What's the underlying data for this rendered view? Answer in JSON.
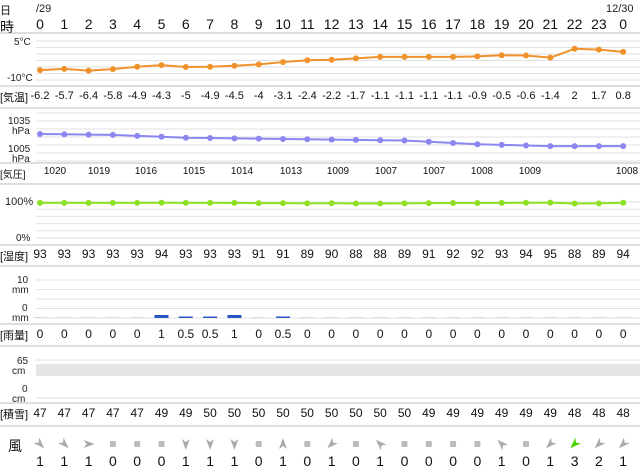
{
  "header": {
    "date_label": "日",
    "hour_label": "時",
    "date_start": "/29",
    "date_end": "12/30",
    "hours": [
      "0",
      "1",
      "2",
      "3",
      "4",
      "5",
      "6",
      "7",
      "8",
      "9",
      "10",
      "11",
      "12",
      "13",
      "14",
      "15",
      "16",
      "17",
      "18",
      "19",
      "20",
      "21",
      "22",
      "23",
      "0"
    ]
  },
  "temperature": {
    "row_label": "[気温]",
    "axis_top": "5°C",
    "axis_bottom": "-10°C",
    "values": [
      "-6.2",
      "-5.7",
      "-6.4",
      "-5.8",
      "-4.9",
      "-4.3",
      "-5",
      "-4.9",
      "-4.5",
      "-4",
      "-3.1",
      "-2.4",
      "-2.2",
      "-1.7",
      "-1.1",
      "-1.1",
      "-1.1",
      "-1.1",
      "-0.9",
      "-0.5",
      "-0.6",
      "-1.4",
      "2",
      "1.7",
      "0.8"
    ],
    "color": "#f0922b"
  },
  "pressure": {
    "row_label": "[気圧]",
    "axis_top": "1035",
    "axis_top_unit": "hPa",
    "axis_bottom": "1005",
    "axis_bottom_unit": "hPa",
    "values": [
      "1020",
      "1019",
      "1016",
      "1015",
      "1014",
      "1013",
      "1009",
      "1007",
      "1007",
      "1008",
      "1009",
      "1008"
    ],
    "value_hours": [
      0,
      3,
      6,
      9,
      12,
      15,
      18,
      21,
      24,
      27,
      30,
      33
    ],
    "color": "#8c86f0"
  },
  "humidity": {
    "row_label": "[湿度]",
    "axis_top": "100%",
    "axis_bottom": "0%",
    "values": [
      "93",
      "93",
      "93",
      "93",
      "93",
      "94",
      "93",
      "93",
      "93",
      "91",
      "91",
      "89",
      "90",
      "88",
      "88",
      "89",
      "91",
      "92",
      "92",
      "93",
      "94",
      "95",
      "88",
      "89",
      "94"
    ],
    "color": "#8ee022"
  },
  "precip": {
    "row_label": "[雨量]",
    "axis_top": "10",
    "axis_top_unit": "mm",
    "axis_bottom": "0",
    "axis_bottom_unit": "mm",
    "values": [
      "0",
      "0",
      "0",
      "0",
      "0",
      "1",
      "0.5",
      "0.5",
      "1",
      "0",
      "0.5",
      "0",
      "0",
      "0",
      "0",
      "0",
      "0",
      "0",
      "0",
      "0",
      "0",
      "0",
      "0",
      "0",
      "0"
    ],
    "color": "#2a56c6"
  },
  "snow": {
    "row_label": "[積雪]",
    "axis_top": "65",
    "axis_top_unit": "cm",
    "axis_bottom": "0",
    "axis_bottom_unit": "cm",
    "values": [
      "47",
      "47",
      "47",
      "47",
      "47",
      "49",
      "49",
      "50",
      "50",
      "50",
      "50",
      "50",
      "50",
      "50",
      "50",
      "50",
      "49",
      "49",
      "49",
      "49",
      "49",
      "49",
      "48",
      "48",
      "48"
    ]
  },
  "wind": {
    "row_label": "風",
    "values": [
      "1",
      "1",
      "1",
      "0",
      "0",
      "0",
      "1",
      "1",
      "1",
      "0",
      "1",
      "0",
      "1",
      "0",
      "1",
      "0",
      "0",
      "0",
      "0",
      "1",
      "0",
      "1",
      "3",
      "2",
      "1"
    ],
    "directions": [
      "se",
      "se",
      "e",
      "calm",
      "calm",
      "calm",
      "s",
      "s",
      "s",
      "calm",
      "n",
      "calm",
      "sw",
      "calm",
      "nw",
      "calm",
      "calm",
      "calm",
      "calm",
      "nw",
      "calm",
      "sw",
      "sw",
      "sw",
      "sw"
    ],
    "arrow_color": "#aaaaaa",
    "strong_arrow_color": "#4dd400",
    "calm_color": "#bbbbbb"
  }
}
